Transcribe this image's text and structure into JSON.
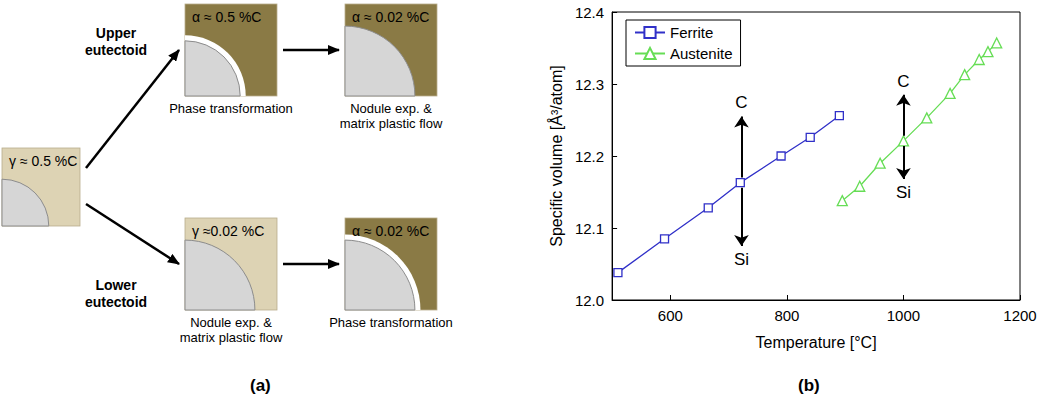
{
  "diagram": {
    "panel_label": "(a)",
    "start": {
      "label": "γ ≈ 0.5 %C"
    },
    "paths": [
      {
        "name": "Upper eutectoid",
        "steps": [
          {
            "label": "α ≈ 0.5 %C",
            "caption": "Phase transformation"
          },
          {
            "label": "α ≈ 0.02 %C",
            "caption": "Nodule exp. & matrix plastic flow"
          }
        ]
      },
      {
        "name": "Lower eutectoid",
        "steps": [
          {
            "label": "γ ≈0.02 %C",
            "caption": "Nodule exp. & matrix plastic flow"
          },
          {
            "label": "α ≈ 0.02 %C",
            "caption": "Phase transformation"
          }
        ]
      }
    ]
  },
  "chart_data": {
    "type": "line",
    "panel_label": "(b)",
    "x_label": "Temperature [°C]",
    "y_label": "Specific volume [Å³/atom]",
    "xlim": [
      500,
      1200
    ],
    "xticks": [
      600,
      800,
      1000,
      1200
    ],
    "ylim": [
      12.0,
      12.4
    ],
    "yticks": [
      {
        "value": 12.0,
        "label": "12.0"
      },
      12.1,
      12.2,
      12.3,
      12.4
    ],
    "grid": false,
    "legend": "upper left",
    "series": [
      {
        "name": "Ferrite",
        "color": "#3030c8",
        "marker": "square",
        "line_style": "solid",
        "x": [
          510,
          590,
          665,
          720,
          790,
          840,
          890
        ],
        "values": [
          12.038,
          12.085,
          12.128,
          12.163,
          12.2,
          12.226,
          12.256
        ]
      },
      {
        "name": "Austenite",
        "color": "#66dd55",
        "marker": "triangle",
        "line_style": "solid",
        "x": [
          895,
          925,
          960,
          1000,
          1040,
          1080,
          1105,
          1130,
          1145,
          1160
        ],
        "values": [
          12.138,
          12.158,
          12.19,
          12.221,
          12.253,
          12.287,
          12.313,
          12.334,
          12.345,
          12.357
        ]
      }
    ],
    "annotations": [
      {
        "text": "C",
        "from": [
          722,
          12.17
        ],
        "to": [
          722,
          12.255
        ]
      },
      {
        "text": "Si",
        "from": [
          722,
          12.156
        ],
        "to": [
          722,
          12.075
        ]
      },
      {
        "text": "C",
        "from": [
          1000,
          12.228
        ],
        "to": [
          1000,
          12.285
        ]
      },
      {
        "text": "Si",
        "from": [
          1000,
          12.214
        ],
        "to": [
          1000,
          12.168
        ]
      }
    ]
  }
}
